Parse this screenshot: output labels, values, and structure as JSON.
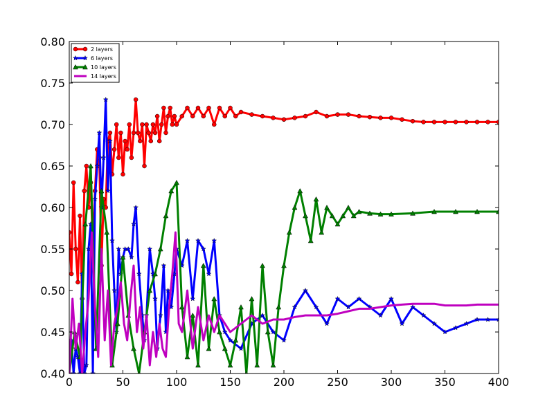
{
  "chart_data": {
    "type": "line",
    "xlim": [
      0,
      400
    ],
    "ylim": [
      0.4,
      0.8
    ],
    "xticks": [
      0,
      50,
      100,
      150,
      200,
      250,
      300,
      350,
      400
    ],
    "yticks": [
      0.4,
      0.45,
      0.5,
      0.55,
      0.6,
      0.65,
      0.7,
      0.75,
      0.8
    ],
    "xtick_labels": [
      "0",
      "50",
      "100",
      "150",
      "200",
      "250",
      "300",
      "350",
      "400"
    ],
    "ytick_labels": [
      "0.40",
      "0.45",
      "0.50",
      "0.55",
      "0.60",
      "0.65",
      "0.70",
      "0.75",
      "0.80"
    ],
    "grid": false,
    "legend_position": "top-left",
    "series": [
      {
        "name": "2 layers",
        "color": "#ff0000",
        "marker": "circle",
        "x": [
          0,
          2,
          4,
          6,
          8,
          10,
          12,
          14,
          16,
          18,
          20,
          22,
          24,
          26,
          28,
          30,
          32,
          34,
          36,
          38,
          40,
          42,
          44,
          46,
          48,
          50,
          52,
          54,
          56,
          58,
          60,
          62,
          64,
          66,
          68,
          70,
          72,
          74,
          76,
          78,
          80,
          82,
          84,
          86,
          88,
          90,
          92,
          94,
          96,
          98,
          100,
          105,
          110,
          115,
          120,
          125,
          130,
          135,
          140,
          145,
          150,
          155,
          160,
          170,
          180,
          190,
          200,
          210,
          220,
          230,
          240,
          250,
          260,
          270,
          280,
          290,
          300,
          310,
          320,
          330,
          340,
          350,
          360,
          370,
          380,
          390,
          400
        ],
        "y": [
          0.57,
          0.52,
          0.63,
          0.55,
          0.51,
          0.59,
          0.49,
          0.62,
          0.65,
          0.6,
          0.63,
          0.55,
          0.62,
          0.67,
          0.66,
          0.53,
          0.61,
          0.6,
          0.68,
          0.69,
          0.64,
          0.67,
          0.7,
          0.66,
          0.69,
          0.64,
          0.68,
          0.67,
          0.7,
          0.66,
          0.69,
          0.73,
          0.69,
          0.68,
          0.7,
          0.65,
          0.7,
          0.69,
          0.68,
          0.7,
          0.69,
          0.71,
          0.68,
          0.7,
          0.72,
          0.69,
          0.71,
          0.72,
          0.7,
          0.71,
          0.7,
          0.71,
          0.72,
          0.71,
          0.72,
          0.71,
          0.72,
          0.7,
          0.72,
          0.71,
          0.72,
          0.71,
          0.715,
          0.712,
          0.71,
          0.708,
          0.706,
          0.708,
          0.71,
          0.715,
          0.71,
          0.712,
          0.712,
          0.71,
          0.709,
          0.708,
          0.708,
          0.706,
          0.704,
          0.703,
          0.703,
          0.703,
          0.703,
          0.703,
          0.703,
          0.703,
          0.703
        ]
      },
      {
        "name": "6 layers",
        "color": "#0000ff",
        "marker": "star",
        "x": [
          0,
          2,
          4,
          6,
          8,
          10,
          12,
          14,
          16,
          18,
          20,
          22,
          24,
          26,
          28,
          30,
          32,
          34,
          36,
          38,
          40,
          42,
          44,
          46,
          48,
          50,
          52,
          55,
          58,
          60,
          62,
          65,
          68,
          70,
          72,
          75,
          78,
          80,
          82,
          85,
          88,
          90,
          92,
          95,
          98,
          100,
          105,
          110,
          115,
          120,
          125,
          130,
          135,
          140,
          145,
          150,
          160,
          170,
          180,
          190,
          200,
          210,
          220,
          230,
          240,
          250,
          260,
          270,
          280,
          290,
          300,
          310,
          320,
          330,
          340,
          350,
          360,
          370,
          380,
          390,
          400
        ],
        "y": [
          0.4,
          0.44,
          0.4,
          0.43,
          0.42,
          0.4,
          0.52,
          0.4,
          0.41,
          0.55,
          0.58,
          0.4,
          0.61,
          0.65,
          0.69,
          0.6,
          0.66,
          0.73,
          0.62,
          0.68,
          0.56,
          0.5,
          0.45,
          0.55,
          0.52,
          0.54,
          0.55,
          0.55,
          0.54,
          0.58,
          0.6,
          0.52,
          0.47,
          0.44,
          0.47,
          0.55,
          0.52,
          0.49,
          0.43,
          0.47,
          0.53,
          0.45,
          0.5,
          0.48,
          0.52,
          0.55,
          0.53,
          0.56,
          0.49,
          0.56,
          0.55,
          0.52,
          0.56,
          0.47,
          0.45,
          0.44,
          0.43,
          0.46,
          0.47,
          0.45,
          0.44,
          0.48,
          0.5,
          0.48,
          0.46,
          0.49,
          0.48,
          0.49,
          0.48,
          0.47,
          0.49,
          0.46,
          0.48,
          0.47,
          0.46,
          0.45,
          0.455,
          0.46,
          0.465,
          0.465,
          0.465
        ]
      },
      {
        "name": "10 layers",
        "color": "#008000",
        "marker": "triangle",
        "x": [
          0,
          5,
          10,
          15,
          20,
          25,
          30,
          35,
          40,
          45,
          50,
          55,
          60,
          65,
          70,
          75,
          80,
          85,
          90,
          95,
          100,
          105,
          110,
          115,
          120,
          125,
          130,
          135,
          140,
          145,
          150,
          155,
          160,
          165,
          170,
          175,
          180,
          185,
          190,
          195,
          200,
          205,
          210,
          215,
          220,
          225,
          230,
          235,
          240,
          245,
          250,
          255,
          260,
          265,
          270,
          280,
          290,
          300,
          320,
          340,
          360,
          380,
          400
        ],
        "y": [
          0.4,
          0.45,
          0.42,
          0.58,
          0.65,
          0.43,
          0.62,
          0.57,
          0.41,
          0.46,
          0.54,
          0.47,
          0.43,
          0.4,
          0.45,
          0.5,
          0.52,
          0.55,
          0.59,
          0.62,
          0.63,
          0.48,
          0.42,
          0.47,
          0.41,
          0.53,
          0.43,
          0.49,
          0.45,
          0.43,
          0.41,
          0.44,
          0.48,
          0.4,
          0.49,
          0.41,
          0.53,
          0.45,
          0.41,
          0.48,
          0.53,
          0.57,
          0.6,
          0.62,
          0.59,
          0.56,
          0.61,
          0.57,
          0.6,
          0.59,
          0.58,
          0.59,
          0.6,
          0.59,
          0.595,
          0.593,
          0.592,
          0.592,
          0.593,
          0.595,
          0.595,
          0.595,
          0.595
        ]
      },
      {
        "name": "14 layers",
        "color": "#bf00bf",
        "marker": "none",
        "x": [
          0,
          3,
          6,
          9,
          12,
          15,
          18,
          21,
          24,
          27,
          30,
          33,
          36,
          39,
          42,
          45,
          48,
          51,
          54,
          57,
          60,
          63,
          66,
          69,
          72,
          75,
          78,
          81,
          84,
          87,
          90,
          93,
          96,
          99,
          102,
          105,
          110,
          115,
          120,
          125,
          130,
          135,
          140,
          145,
          150,
          160,
          170,
          180,
          190,
          200,
          210,
          220,
          230,
          240,
          250,
          260,
          270,
          280,
          290,
          300,
          310,
          320,
          330,
          340,
          350,
          360,
          370,
          380,
          390,
          400
        ],
        "y": [
          0.4,
          0.49,
          0.43,
          0.46,
          0.4,
          0.45,
          0.49,
          0.57,
          0.48,
          0.42,
          0.55,
          0.44,
          0.5,
          0.41,
          0.46,
          0.48,
          0.51,
          0.46,
          0.44,
          0.49,
          0.53,
          0.45,
          0.48,
          0.43,
          0.47,
          0.41,
          0.45,
          0.42,
          0.46,
          0.43,
          0.42,
          0.48,
          0.52,
          0.57,
          0.46,
          0.45,
          0.5,
          0.43,
          0.48,
          0.44,
          0.47,
          0.45,
          0.47,
          0.46,
          0.45,
          0.46,
          0.47,
          0.46,
          0.465,
          0.465,
          0.468,
          0.47,
          0.47,
          0.47,
          0.472,
          0.475,
          0.478,
          0.478,
          0.48,
          0.482,
          0.483,
          0.484,
          0.484,
          0.484,
          0.482,
          0.482,
          0.482,
          0.483,
          0.483,
          0.483
        ]
      }
    ]
  }
}
